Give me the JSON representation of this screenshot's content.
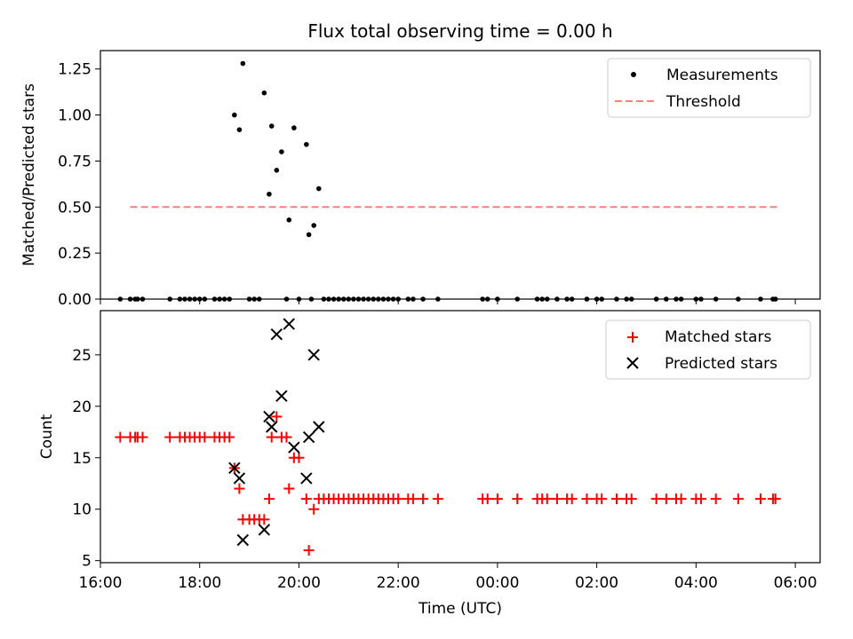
{
  "figure": {
    "title": "Flux total observing time = 0.00 h"
  },
  "chart_data": [
    {
      "type": "scatter",
      "ylabel": "Matched/Predicted stars",
      "xlabel": "",
      "ylim": [
        0,
        1.35
      ],
      "yticks": [
        0.0,
        0.25,
        0.5,
        0.75,
        1.0,
        1.25
      ],
      "yticklabels": [
        "0.00",
        "0.25",
        "0.50",
        "0.75",
        "1.00",
        "1.25"
      ],
      "legend_position": "top-right",
      "series": [
        {
          "name": "Measurements",
          "marker": "dot",
          "color": "#000000",
          "points": [
            [
              16.4,
              0
            ],
            [
              16.6,
              0
            ],
            [
              16.7,
              0
            ],
            [
              16.75,
              0
            ],
            [
              16.85,
              0
            ],
            [
              17.4,
              0
            ],
            [
              17.6,
              0
            ],
            [
              17.7,
              0
            ],
            [
              17.8,
              0
            ],
            [
              17.9,
              0
            ],
            [
              18.0,
              0
            ],
            [
              18.1,
              0
            ],
            [
              18.3,
              0
            ],
            [
              18.4,
              0
            ],
            [
              18.5,
              0
            ],
            [
              18.6,
              0
            ],
            [
              18.7,
              1.0
            ],
            [
              18.8,
              0.92
            ],
            [
              18.87,
              1.28
            ],
            [
              19.0,
              0
            ],
            [
              19.1,
              0
            ],
            [
              19.2,
              0
            ],
            [
              19.3,
              1.12
            ],
            [
              19.4,
              0.57
            ],
            [
              19.45,
              0.94
            ],
            [
              19.55,
              0.7
            ],
            [
              19.65,
              0.8
            ],
            [
              19.75,
              0
            ],
            [
              19.8,
              0.43
            ],
            [
              19.9,
              0.93
            ],
            [
              20.0,
              0
            ],
            [
              20.15,
              0.84
            ],
            [
              20.2,
              0.35
            ],
            [
              20.25,
              0
            ],
            [
              20.3,
              0.4
            ],
            [
              20.4,
              0.6
            ],
            [
              20.5,
              0
            ],
            [
              20.6,
              0
            ],
            [
              20.7,
              0
            ],
            [
              20.8,
              0
            ],
            [
              20.9,
              0
            ],
            [
              21.0,
              0
            ],
            [
              21.1,
              0
            ],
            [
              21.2,
              0
            ],
            [
              21.3,
              0
            ],
            [
              21.4,
              0
            ],
            [
              21.5,
              0
            ],
            [
              21.6,
              0
            ],
            [
              21.7,
              0
            ],
            [
              21.8,
              0
            ],
            [
              21.9,
              0
            ],
            [
              22.0,
              0
            ],
            [
              22.2,
              0
            ],
            [
              22.3,
              0
            ],
            [
              22.5,
              0
            ],
            [
              22.8,
              0
            ],
            [
              23.7,
              0
            ],
            [
              23.8,
              0
            ],
            [
              24.0,
              0
            ],
            [
              24.4,
              0
            ],
            [
              24.8,
              0
            ],
            [
              24.9,
              0
            ],
            [
              25.0,
              0
            ],
            [
              25.2,
              0
            ],
            [
              25.4,
              0
            ],
            [
              25.5,
              0
            ],
            [
              25.8,
              0
            ],
            [
              26.0,
              0
            ],
            [
              26.1,
              0
            ],
            [
              26.4,
              0
            ],
            [
              26.6,
              0
            ],
            [
              26.7,
              0
            ],
            [
              27.2,
              0
            ],
            [
              27.4,
              0
            ],
            [
              27.6,
              0
            ],
            [
              27.7,
              0
            ],
            [
              28.0,
              0
            ],
            [
              28.1,
              0
            ],
            [
              28.4,
              0
            ],
            [
              28.85,
              0
            ],
            [
              29.3,
              0
            ],
            [
              29.55,
              0
            ],
            [
              29.6,
              0
            ]
          ]
        },
        {
          "name": "Threshold",
          "type": "line",
          "style": "dashed",
          "color": "#ff7f7f",
          "points": [
            [
              16.6,
              0.5
            ],
            [
              29.7,
              0.5
            ]
          ]
        }
      ]
    },
    {
      "type": "scatter",
      "ylabel": "Count",
      "xlabel": "Time (UTC)",
      "ylim": [
        4.8,
        29.3
      ],
      "yticks": [
        5,
        10,
        15,
        20,
        25
      ],
      "yticklabels": [
        "5",
        "10",
        "15",
        "20",
        "25"
      ],
      "xlim": [
        16.0,
        30.5
      ],
      "xticks": [
        16,
        18,
        20,
        22,
        24,
        26,
        28,
        30
      ],
      "xticklabels": [
        "16:00",
        "18:00",
        "20:00",
        "22:00",
        "00:00",
        "02:00",
        "04:00",
        "06:00"
      ],
      "legend_position": "top-right",
      "series": [
        {
          "name": "Matched stars",
          "marker": "plus",
          "color": "#ff0000",
          "points": [
            [
              16.4,
              17
            ],
            [
              16.6,
              17
            ],
            [
              16.7,
              17
            ],
            [
              16.75,
              17
            ],
            [
              16.85,
              17
            ],
            [
              17.4,
              17
            ],
            [
              17.6,
              17
            ],
            [
              17.7,
              17
            ],
            [
              17.8,
              17
            ],
            [
              17.9,
              17
            ],
            [
              18.0,
              17
            ],
            [
              18.1,
              17
            ],
            [
              18.3,
              17
            ],
            [
              18.4,
              17
            ],
            [
              18.5,
              17
            ],
            [
              18.6,
              17
            ],
            [
              18.7,
              14
            ],
            [
              18.8,
              12
            ],
            [
              18.87,
              9
            ],
            [
              19.0,
              9
            ],
            [
              19.1,
              9
            ],
            [
              19.2,
              9
            ],
            [
              19.3,
              9
            ],
            [
              19.4,
              11
            ],
            [
              19.45,
              17
            ],
            [
              19.55,
              19
            ],
            [
              19.65,
              17
            ],
            [
              19.75,
              17
            ],
            [
              19.8,
              12
            ],
            [
              19.9,
              15
            ],
            [
              20.0,
              15
            ],
            [
              20.15,
              11
            ],
            [
              20.2,
              6
            ],
            [
              20.3,
              10
            ],
            [
              20.4,
              11
            ],
            [
              20.5,
              11
            ],
            [
              20.6,
              11
            ],
            [
              20.7,
              11
            ],
            [
              20.8,
              11
            ],
            [
              20.9,
              11
            ],
            [
              21.0,
              11
            ],
            [
              21.1,
              11
            ],
            [
              21.2,
              11
            ],
            [
              21.3,
              11
            ],
            [
              21.4,
              11
            ],
            [
              21.5,
              11
            ],
            [
              21.6,
              11
            ],
            [
              21.7,
              11
            ],
            [
              21.8,
              11
            ],
            [
              21.9,
              11
            ],
            [
              22.0,
              11
            ],
            [
              22.2,
              11
            ],
            [
              22.3,
              11
            ],
            [
              22.5,
              11
            ],
            [
              22.8,
              11
            ],
            [
              23.7,
              11
            ],
            [
              23.8,
              11
            ],
            [
              24.0,
              11
            ],
            [
              24.4,
              11
            ],
            [
              24.8,
              11
            ],
            [
              24.9,
              11
            ],
            [
              25.0,
              11
            ],
            [
              25.2,
              11
            ],
            [
              25.4,
              11
            ],
            [
              25.5,
              11
            ],
            [
              25.8,
              11
            ],
            [
              26.0,
              11
            ],
            [
              26.1,
              11
            ],
            [
              26.4,
              11
            ],
            [
              26.6,
              11
            ],
            [
              26.7,
              11
            ],
            [
              27.2,
              11
            ],
            [
              27.4,
              11
            ],
            [
              27.6,
              11
            ],
            [
              27.7,
              11
            ],
            [
              28.0,
              11
            ],
            [
              28.1,
              11
            ],
            [
              28.4,
              11
            ],
            [
              28.85,
              11
            ],
            [
              29.3,
              11
            ],
            [
              29.55,
              11
            ],
            [
              29.6,
              11
            ]
          ]
        },
        {
          "name": "Predicted stars",
          "marker": "x",
          "color": "#000000",
          "points": [
            [
              18.7,
              14
            ],
            [
              18.8,
              13
            ],
            [
              18.87,
              7
            ],
            [
              19.3,
              8
            ],
            [
              19.4,
              19
            ],
            [
              19.45,
              18
            ],
            [
              19.55,
              27
            ],
            [
              19.65,
              21
            ],
            [
              19.8,
              28
            ],
            [
              19.9,
              16
            ],
            [
              20.15,
              13
            ],
            [
              20.2,
              17
            ],
            [
              20.3,
              25
            ],
            [
              20.4,
              18
            ]
          ]
        }
      ]
    }
  ]
}
